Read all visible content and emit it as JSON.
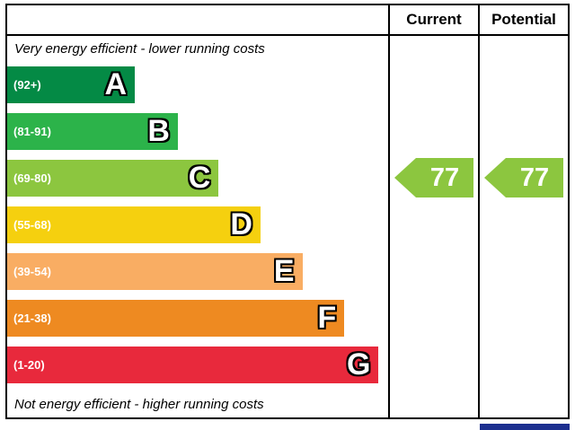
{
  "header": {
    "current": "Current",
    "potential": "Potential"
  },
  "captions": {
    "top": "Very energy efficient - lower running costs",
    "bottom": "Not energy efficient - higher running costs"
  },
  "bands": [
    {
      "letter": "A",
      "range": "(92+)",
      "color": "#048a45",
      "width_pct": 33.5
    },
    {
      "letter": "B",
      "range": "(81-91)",
      "color": "#2cb34a",
      "width_pct": 44.8
    },
    {
      "letter": "C",
      "range": "(69-80)",
      "color": "#8cc63f",
      "width_pct": 55.5
    },
    {
      "letter": "D",
      "range": "(55-68)",
      "color": "#f5d00f",
      "width_pct": 66.5
    },
    {
      "letter": "E",
      "range": "(39-54)",
      "color": "#f9ad63",
      "width_pct": 77.5
    },
    {
      "letter": "F",
      "range": "(21-38)",
      "color": "#ee8a21",
      "width_pct": 88.5
    },
    {
      "letter": "G",
      "range": "(1-20)",
      "color": "#e8293c",
      "width_pct": 97.5
    }
  ],
  "arrows": {
    "current": {
      "value": "77",
      "color": "#8cc63f"
    },
    "potential": {
      "value": "77",
      "color": "#8cc63f"
    }
  },
  "misc": {
    "cutoff_color": "#1c2f8f"
  },
  "chart_data": {
    "type": "bar",
    "categories": [
      "A",
      "B",
      "C",
      "D",
      "E",
      "F",
      "G"
    ],
    "band_ranges": [
      "92+",
      "81-91",
      "69-80",
      "55-68",
      "39-54",
      "21-38",
      "1-20"
    ],
    "band_colors": [
      "#048a45",
      "#2cb34a",
      "#8cc63f",
      "#f5d00f",
      "#f9ad63",
      "#ee8a21",
      "#e8293c"
    ],
    "bar_lengths_pct": [
      33.5,
      44.8,
      55.5,
      66.5,
      77.5,
      88.5,
      97.5
    ],
    "series": [
      {
        "name": "Current",
        "value": 77,
        "band": "C"
      },
      {
        "name": "Potential",
        "value": 77,
        "band": "C"
      }
    ],
    "annotations": [
      "Very energy efficient - lower running costs",
      "Not energy efficient - higher running costs"
    ],
    "legend_position": "none",
    "grid": false
  }
}
